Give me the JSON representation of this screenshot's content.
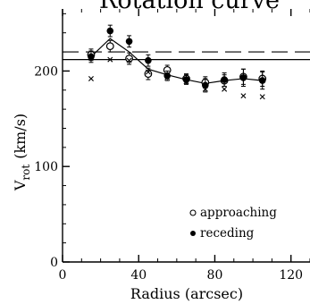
{
  "chart_data": {
    "type": "scatter",
    "title": "Rotation curve",
    "xlabel": "Radius (arcsec)",
    "ylabel": "V",
    "ylabel_subscript": "rot",
    "ylabel_unit": "(km/s)",
    "xlim": [
      0,
      130
    ],
    "ylim": [
      0,
      265
    ],
    "xticks": [
      0,
      40,
      80,
      120
    ],
    "yticks": [
      0,
      100,
      200
    ],
    "grid": false,
    "legend_position": "bottom-right",
    "series": [
      {
        "name": "approaching",
        "marker": "open-circle",
        "x": [
          15,
          25,
          35,
          45,
          55,
          65,
          75,
          85,
          95,
          105
        ],
        "y": [
          217,
          226,
          213,
          197,
          201,
          192,
          188,
          190,
          194,
          192
        ],
        "err": [
          6,
          6,
          6,
          6,
          5,
          5,
          6,
          6,
          8,
          8
        ]
      },
      {
        "name": "receding",
        "marker": "filled-circle",
        "x": [
          15,
          25,
          35,
          45,
          55,
          65,
          75,
          85,
          95,
          105
        ],
        "y": [
          215,
          242,
          231,
          211,
          195,
          191,
          185,
          191,
          193,
          190
        ],
        "err": [
          6,
          6,
          6,
          6,
          5,
          5,
          7,
          7,
          9,
          9
        ]
      },
      {
        "marker": "cross",
        "x": [
          15,
          25,
          35,
          45,
          55,
          65,
          75,
          85,
          95,
          105
        ],
        "y": [
          192,
          212,
          211,
          199,
          193,
          189,
          181,
          181,
          174,
          173
        ]
      },
      {
        "style": "solid-line",
        "x": [
          15,
          25,
          35,
          45,
          55,
          65,
          75,
          85,
          95,
          105
        ],
        "y": [
          215,
          234,
          220,
          202,
          196,
          191,
          187,
          190,
          192,
          190
        ]
      },
      {
        "style": "solid-hline",
        "y": 212
      },
      {
        "style": "dashed-hline",
        "y": 220
      }
    ]
  }
}
